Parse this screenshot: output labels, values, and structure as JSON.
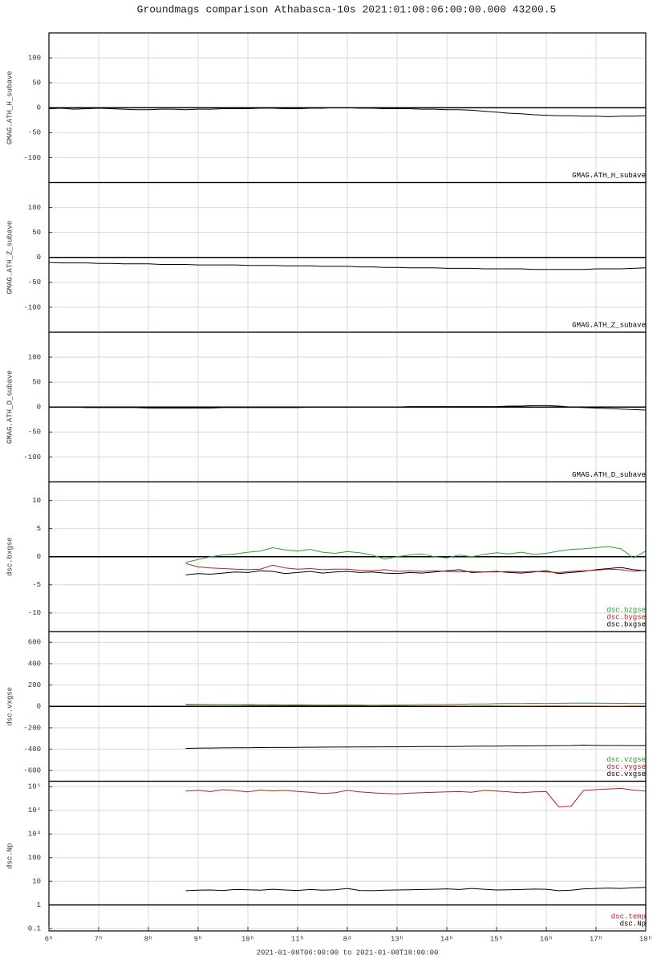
{
  "chart_data": [
    {
      "type": "line",
      "title": "Groundmags comparison Athabasca-10s 2021:01:08:06:00:00.000 43200.5",
      "ylabel": "GMAG.ATH_H_subave",
      "x": [
        6,
        6.25,
        6.5,
        6.75,
        7,
        7.25,
        7.5,
        7.75,
        8,
        8.25,
        8.5,
        8.75,
        9,
        9.25,
        9.5,
        9.75,
        10,
        10.25,
        10.5,
        10.75,
        11,
        11.25,
        11.5,
        11.75,
        12,
        12.25,
        12.5,
        12.75,
        13,
        13.25,
        13.5,
        13.75,
        14,
        14.25,
        14.5,
        14.75,
        15,
        15.25,
        15.5,
        15.75,
        16,
        16.25,
        16.5,
        16.75,
        17,
        17.25,
        17.5,
        17.75,
        18
      ],
      "series": [
        {
          "name": "GMAG.ATH_H_subave",
          "color": "#000000",
          "values": [
            -2,
            -1,
            -3,
            -2,
            -1,
            -2,
            -3,
            -4,
            -4,
            -3,
            -3,
            -4,
            -3,
            -3,
            -2,
            -2,
            -2,
            -1,
            -1,
            -2,
            -2,
            -1,
            -1,
            0,
            0,
            -1,
            -1,
            -2,
            -2,
            -2,
            -3,
            -3,
            -4,
            -4,
            -5,
            -7,
            -9,
            -11,
            -12,
            -14,
            -15,
            -16,
            -16,
            -17,
            -17,
            -18,
            -17,
            -17,
            -16
          ]
        }
      ],
      "xlim": [
        6,
        18
      ],
      "ylim": [
        -150,
        150
      ],
      "yticks": [
        100,
        50,
        0,
        -50,
        -100
      ],
      "hline": 0,
      "grid": true
    },
    {
      "type": "line",
      "ylabel": "GMAG.ATH_Z_subave",
      "x": [
        6,
        6.25,
        6.5,
        6.75,
        7,
        7.25,
        7.5,
        7.75,
        8,
        8.25,
        8.5,
        8.75,
        9,
        9.25,
        9.5,
        9.75,
        10,
        10.25,
        10.5,
        10.75,
        11,
        11.25,
        11.5,
        11.75,
        12,
        12.25,
        12.5,
        12.75,
        13,
        13.25,
        13.5,
        13.75,
        14,
        14.25,
        14.5,
        14.75,
        15,
        15.25,
        15.5,
        15.75,
        16,
        16.25,
        16.5,
        16.75,
        17,
        17.25,
        17.5,
        17.75,
        18
      ],
      "series": [
        {
          "name": "GMAG.ATH_Z_subave",
          "color": "#000000",
          "values": [
            -10,
            -11,
            -11,
            -11,
            -12,
            -12,
            -13,
            -13,
            -13,
            -14,
            -14,
            -14,
            -15,
            -15,
            -15,
            -15,
            -16,
            -16,
            -16,
            -17,
            -17,
            -17,
            -18,
            -18,
            -18,
            -19,
            -19,
            -20,
            -20,
            -21,
            -21,
            -21,
            -22,
            -22,
            -22,
            -23,
            -23,
            -23,
            -23,
            -24,
            -24,
            -24,
            -24,
            -24,
            -23,
            -23,
            -23,
            -22,
            -21
          ]
        }
      ],
      "xlim": [
        6,
        18
      ],
      "ylim": [
        -150,
        150
      ],
      "yticks": [
        100,
        50,
        0,
        -50,
        -100
      ],
      "hline": 0,
      "grid": true
    },
    {
      "type": "line",
      "ylabel": "GMAG.ATH_D_subave",
      "x": [
        6,
        6.25,
        6.5,
        6.75,
        7,
        7.25,
        7.5,
        7.75,
        8,
        8.25,
        8.5,
        8.75,
        9,
        9.25,
        9.5,
        9.75,
        10,
        10.25,
        10.5,
        10.75,
        11,
        11.25,
        11.5,
        11.75,
        12,
        12.25,
        12.5,
        12.75,
        13,
        13.25,
        13.5,
        13.75,
        14,
        14.25,
        14.5,
        14.75,
        15,
        15.25,
        15.5,
        15.75,
        16,
        16.25,
        16.5,
        16.75,
        17,
        17.25,
        17.5,
        17.75,
        18
      ],
      "series": [
        {
          "name": "GMAG.ATH_D_subave",
          "color": "#000000",
          "values": [
            0,
            0,
            0,
            -1,
            -1,
            -1,
            -1,
            -1,
            -2,
            -2,
            -2,
            -2,
            -2,
            -2,
            -1,
            -1,
            -1,
            -1,
            -1,
            -1,
            -1,
            0,
            0,
            0,
            0,
            0,
            0,
            0,
            0,
            1,
            1,
            1,
            1,
            1,
            1,
            1,
            1,
            2,
            2,
            3,
            3,
            2,
            0,
            -1,
            -2,
            -3,
            -4,
            -5,
            -6
          ]
        }
      ],
      "xlim": [
        6,
        18
      ],
      "ylim": [
        -150,
        150
      ],
      "yticks": [
        100,
        50,
        0,
        -50,
        -100
      ],
      "hline": 0,
      "grid": true
    },
    {
      "type": "line",
      "ylabel": "dsc.bxgse",
      "x": [
        8.75,
        9,
        9.25,
        9.5,
        9.75,
        10,
        10.25,
        10.5,
        10.75,
        11,
        11.25,
        11.5,
        11.75,
        12,
        12.25,
        12.5,
        12.75,
        13,
        13.25,
        13.5,
        13.75,
        14,
        14.25,
        14.5,
        14.75,
        15,
        15.25,
        15.5,
        15.75,
        16,
        16.25,
        16.5,
        16.75,
        17,
        17.25,
        17.5,
        17.75,
        18
      ],
      "series": [
        {
          "name": "dsc.bxgse",
          "color": "#000000",
          "values": [
            -3.2,
            -3,
            -3.1,
            -2.9,
            -2.7,
            -2.8,
            -2.5,
            -2.6,
            -3,
            -2.8,
            -2.6,
            -2.9,
            -2.7,
            -2.6,
            -2.8,
            -2.7,
            -2.9,
            -3,
            -2.8,
            -2.9,
            -2.7,
            -2.5,
            -2.3,
            -2.8,
            -2.7,
            -2.6,
            -2.8,
            -2.9,
            -2.7,
            -2.5,
            -3,
            -2.8,
            -2.6,
            -2.3,
            -2.1,
            -1.9,
            -2.3,
            -2.5
          ]
        },
        {
          "name": "dsc.bygse",
          "color": "#b22222",
          "values": [
            -1.2,
            -1.8,
            -2,
            -2.1,
            -2.2,
            -2.3,
            -2.2,
            -1.5,
            -2,
            -2.2,
            -2.1,
            -2.3,
            -2.2,
            -2.2,
            -2.4,
            -2.5,
            -2.3,
            -2.6,
            -2.5,
            -2.6,
            -2.5,
            -2.6,
            -2.7,
            -2.6,
            -2.7,
            -2.7,
            -2.6,
            -2.7,
            -2.6,
            -2.7,
            -2.8,
            -2.6,
            -2.5,
            -2.4,
            -2.2,
            -2.3,
            -2.6,
            -2.4
          ]
        },
        {
          "name": "dsc.bzgse",
          "color": "#2ca02c",
          "values": [
            -1,
            -0.5,
            0,
            0.3,
            0.5,
            0.8,
            1,
            1.6,
            1.2,
            1,
            1.3,
            0.8,
            0.6,
            0.9,
            0.7,
            0.3,
            -0.4,
            0,
            0.3,
            0.5,
            0,
            -0.2,
            0.3,
            0,
            0.4,
            0.7,
            0.5,
            0.8,
            0.4,
            0.6,
            1,
            1.3,
            1.4,
            1.6,
            1.8,
            1.4,
            -0.2,
            1
          ]
        }
      ],
      "xlim": [
        6,
        18
      ],
      "ylim": [
        -13.3,
        13.3
      ],
      "yticks": [
        10,
        5,
        0,
        -5,
        -10
      ],
      "hline": 0,
      "grid": true
    },
    {
      "type": "line",
      "ylabel": "dsc.vxgse",
      "x": [
        8.75,
        9,
        9.25,
        9.5,
        9.75,
        10,
        10.25,
        10.5,
        10.75,
        11,
        11.25,
        11.5,
        11.75,
        12,
        12.25,
        12.5,
        12.75,
        13,
        13.25,
        13.5,
        13.75,
        14,
        14.25,
        14.5,
        14.75,
        15,
        15.25,
        15.5,
        15.75,
        16,
        16.25,
        16.5,
        16.75,
        17,
        17.25,
        17.5,
        17.75,
        18
      ],
      "series": [
        {
          "name": "dsc.vxgse",
          "color": "#000000",
          "values": [
            -392,
            -390,
            -389,
            -388,
            -387,
            -386,
            -385,
            -384,
            -384,
            -383,
            -382,
            -381,
            -380,
            -380,
            -379,
            -379,
            -378,
            -378,
            -377,
            -376,
            -376,
            -375,
            -374,
            -373,
            -372,
            -371,
            -370,
            -370,
            -369,
            -368,
            -367,
            -366,
            -362,
            -365,
            -366,
            -366,
            -367,
            -366
          ]
        },
        {
          "name": "dsc.vygse",
          "color": "#b22222",
          "values": [
            20,
            18,
            16,
            15,
            14,
            12,
            12,
            10,
            10,
            9,
            8,
            8,
            7,
            8,
            7,
            6,
            6,
            7,
            6,
            5,
            5,
            5,
            4,
            4,
            5,
            4,
            4,
            3,
            3,
            4,
            4,
            3,
            3,
            3,
            2,
            2,
            3,
            3
          ]
        },
        {
          "name": "dsc.vzgse",
          "color": "#2ca02c",
          "values": [
            15,
            15,
            14,
            16,
            15,
            17,
            15,
            16,
            14,
            16,
            15,
            13,
            14,
            15,
            14,
            12,
            13,
            14,
            15,
            16,
            17,
            18,
            20,
            22,
            23,
            25,
            26,
            27,
            28,
            27,
            29,
            30,
            31,
            30,
            29,
            28,
            27,
            26
          ]
        }
      ],
      "xlim": [
        6,
        18
      ],
      "ylim": [
        -700,
        700
      ],
      "yticks": [
        600,
        400,
        200,
        0,
        -200,
        -400,
        -600
      ],
      "hline": 0,
      "grid": true
    },
    {
      "type": "line",
      "ylabel": "dsc.Np",
      "xlabel": "2021-01-08T06:00:00 to 2021-01-08T18:00:00",
      "x": [
        8.75,
        9,
        9.25,
        9.5,
        9.75,
        10,
        10.25,
        10.5,
        10.75,
        11,
        11.25,
        11.5,
        11.75,
        12,
        12.25,
        12.5,
        12.75,
        13,
        13.25,
        13.5,
        13.75,
        14,
        14.25,
        14.5,
        14.75,
        15,
        15.25,
        15.5,
        15.75,
        16,
        16.25,
        16.5,
        16.75,
        17,
        17.25,
        17.5,
        17.75,
        18
      ],
      "series": [
        {
          "name": "dsc.Np",
          "color": "#000000",
          "values": [
            4,
            4.2,
            4.3,
            4.1,
            4.5,
            4.4,
            4.2,
            4.6,
            4.3,
            4.1,
            4.5,
            4.2,
            4.4,
            5,
            4.1,
            4,
            4.2,
            4.3,
            4.4,
            4.5,
            4.6,
            4.8,
            4.5,
            5,
            4.6,
            4.3,
            4.4,
            4.5,
            4.7,
            4.6,
            4,
            4.2,
            4.8,
            5,
            5.2,
            5,
            5.3,
            5.5
          ]
        },
        {
          "name": "dsc.temp",
          "color": "#b22222",
          "values": [
            65000,
            70000,
            62000,
            75000,
            68000,
            60000,
            72000,
            66000,
            70000,
            63000,
            58000,
            52000,
            55000,
            70000,
            60000,
            55000,
            52000,
            50000,
            53000,
            56000,
            58000,
            60000,
            62000,
            58000,
            70000,
            65000,
            60000,
            55000,
            60000,
            62000,
            14000,
            15000,
            70000,
            75000,
            80000,
            85000,
            72000,
            65000
          ]
        }
      ],
      "xlim": [
        6,
        18
      ],
      "ylim": [
        0.08,
        170000
      ],
      "log_y": true,
      "yticks": [
        {
          "value": 100000,
          "label": "10⁵"
        },
        {
          "value": 10000,
          "label": "10⁴"
        },
        {
          "value": 1000,
          "label": "10³"
        },
        100,
        10,
        1,
        0.1
      ],
      "xticks": [
        {
          "value": 6,
          "label": "6ʰ"
        },
        {
          "value": 7,
          "label": "7ʰ"
        },
        {
          "value": 8,
          "label": "8ʰ"
        },
        {
          "value": 9,
          "label": "9ʰ"
        },
        {
          "value": 10,
          "label": "10ʰ"
        },
        {
          "value": 11,
          "label": "11ʰ"
        },
        {
          "value": 12,
          "label": "8ᵈ"
        },
        {
          "value": 13,
          "label": "13ʰ"
        },
        {
          "value": 14,
          "label": "14ʰ"
        },
        {
          "value": 15,
          "label": "15ʰ"
        },
        {
          "value": 16,
          "label": "16ʰ"
        },
        {
          "value": 17,
          "label": "17ʰ"
        },
        {
          "value": 18,
          "label": "18ʰ"
        }
      ],
      "hline": 1,
      "grid": true
    }
  ]
}
